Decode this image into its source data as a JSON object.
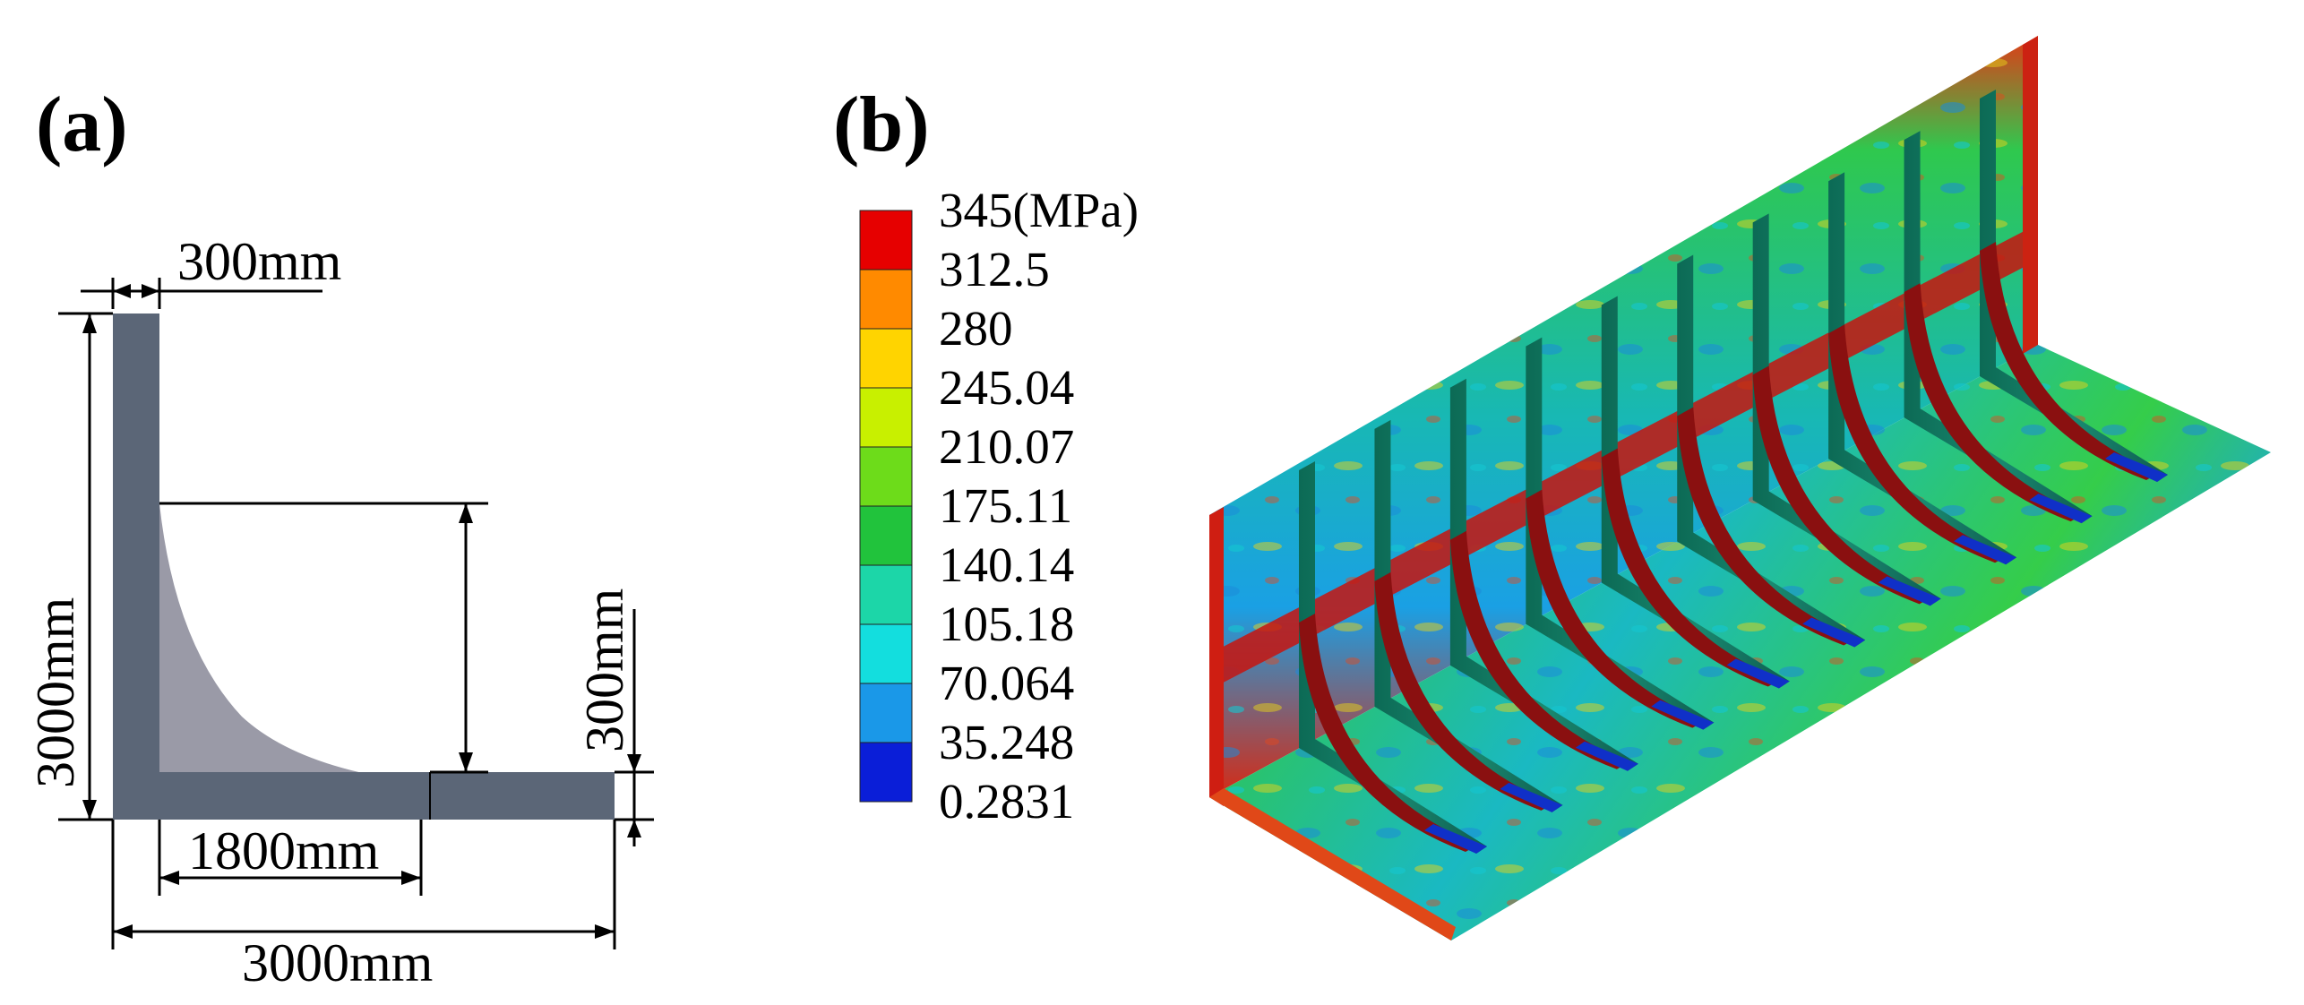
{
  "panel_a": {
    "label": "(a)",
    "dimensions": {
      "flange_thickness_top": "300mm",
      "vertical_height": "3000mm",
      "web_thickness_right": "300mm",
      "fillet_horizontal": "1800mm",
      "horizontal_width": "3000mm"
    }
  },
  "panel_b": {
    "label": "(b)",
    "legend": {
      "labels": [
        "345(MPa)",
        "312.5",
        "280",
        "245.04",
        "210.07",
        "175.11",
        "140.14",
        "105.18",
        "70.064",
        "35.248",
        "0.2831"
      ],
      "colors": [
        "#e60000",
        "#ff8a00",
        "#ffd400",
        "#c8f000",
        "#6ddc1a",
        "#21c33c",
        "#1cd6a8",
        "#13dede",
        "#1a98e8",
        "#0a1ed8"
      ]
    },
    "contour": {
      "quantity": "stress",
      "unit": "MPa",
      "max": 345,
      "min": 0.2831
    }
  },
  "colors": {
    "section_fill": "#5b6677",
    "fillet_fill": "#9a9aa7",
    "plate_base": "#16c48c"
  }
}
